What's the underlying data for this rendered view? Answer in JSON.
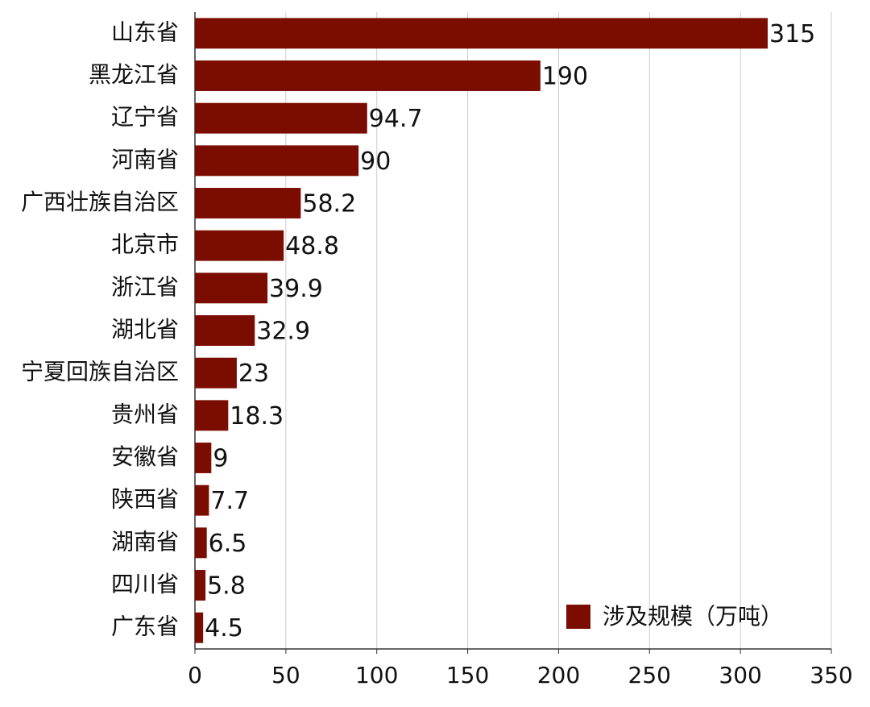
{
  "chart_data": {
    "type": "bar",
    "orientation": "horizontal",
    "categories": [
      "山东省",
      "黑龙江省",
      "辽宁省",
      "河南省",
      "广西壮族自治区",
      "北京市",
      "浙江省",
      "湖北省",
      "宁夏回族自治区",
      "贵州省",
      "安徽省",
      "陕西省",
      "湖南省",
      "四川省",
      "广东省"
    ],
    "series": [
      {
        "name": "涉及规模（万吨）",
        "color": "#7b0c00",
        "values": [
          315,
          190,
          94.7,
          90,
          58.2,
          48.8,
          39.9,
          32.9,
          23,
          18.3,
          9,
          7.7,
          6.5,
          5.8,
          4.5
        ]
      }
    ],
    "xlim": [
      0,
      350
    ],
    "xticks": [
      0,
      50,
      100,
      150,
      200,
      250,
      300,
      350
    ],
    "grid": true,
    "legend": "lower-right"
  }
}
